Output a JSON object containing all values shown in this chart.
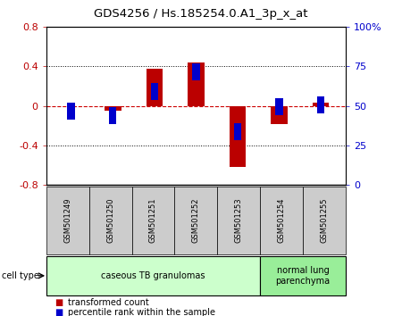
{
  "title": "GDS4256 / Hs.185254.0.A1_3p_x_at",
  "samples": [
    "GSM501249",
    "GSM501250",
    "GSM501251",
    "GSM501252",
    "GSM501253",
    "GSM501254",
    "GSM501255"
  ],
  "transformed_count": [
    0.0,
    -0.05,
    0.38,
    0.44,
    -0.62,
    -0.18,
    0.03
  ],
  "percentile_rank": [
    43,
    40,
    63,
    75,
    30,
    46,
    54
  ],
  "ylim_left": [
    -0.8,
    0.8
  ],
  "ylim_right": [
    0,
    100
  ],
  "yticks_left": [
    -0.8,
    -0.4,
    0,
    0.4,
    0.8
  ],
  "yticks_right": [
    0,
    25,
    50,
    75,
    100
  ],
  "ytick_labels_right": [
    "0",
    "25",
    "50",
    "75",
    "100%"
  ],
  "red_color": "#bb0000",
  "blue_color": "#0000cc",
  "dashed_line_color": "#cc0000",
  "bar_width": 0.4,
  "blue_bar_width": 0.18,
  "groups": [
    {
      "label": "caseous TB granulomas",
      "samples": [
        0,
        1,
        2,
        3,
        4
      ],
      "color": "#ccffcc"
    },
    {
      "label": "normal lung\nparenchyma",
      "samples": [
        5,
        6
      ],
      "color": "#99ee99"
    }
  ],
  "cell_type_label": "cell type",
  "legend_items": [
    {
      "color": "#bb0000",
      "label": "transformed count"
    },
    {
      "color": "#0000cc",
      "label": "percentile rank within the sample"
    }
  ],
  "sample_box_color": "#cccccc",
  "plot_bg": "#ffffff"
}
